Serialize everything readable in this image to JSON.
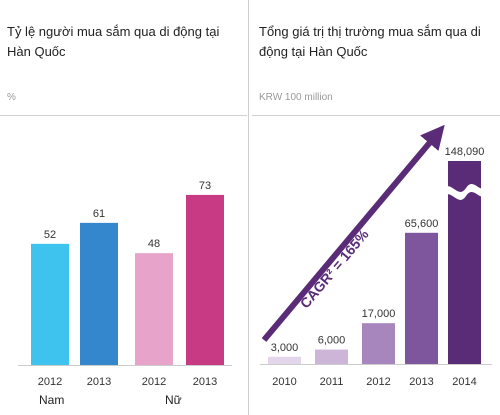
{
  "left": {
    "title": "Tỷ lệ người mua sắm qua di động tại Hàn Quốc",
    "unit": "%",
    "groups": [
      "Nam",
      "Nữ"
    ]
  },
  "right": {
    "title": "Tổng giá trị thị trường mua sắm qua di động tại Hàn Quốc",
    "unit": "KRW 100 million",
    "annotation": "CAGR² = 165%"
  },
  "chart_data": [
    {
      "type": "bar",
      "title": "Tỷ lệ người mua sắm qua di động tại Hàn Quốc",
      "ylabel": "%",
      "categories": [
        "2012",
        "2013",
        "2012",
        "2013"
      ],
      "groups": [
        "Nam",
        "Nam",
        "Nữ",
        "Nữ"
      ],
      "values": [
        52,
        61,
        48,
        73
      ],
      "value_labels": [
        "52",
        "61",
        "48",
        "73"
      ],
      "colors": [
        "#3EC3EE",
        "#3487CC",
        "#E7A3C9",
        "#C83A84"
      ],
      "ylim": [
        0,
        100
      ],
      "grid": false
    },
    {
      "type": "bar",
      "title": "Tổng giá trị thị trường mua sắm qua di động tại Hàn Quốc",
      "ylabel": "KRW 100 million",
      "categories": [
        "2010",
        "2011",
        "2012",
        "2013",
        "2014"
      ],
      "values": [
        3000,
        6000,
        17000,
        65600,
        148090
      ],
      "value_labels": [
        "3,000",
        "6,000",
        "17,000",
        "65,600",
        "148,090"
      ],
      "colors": [
        "#E3D5EA",
        "#CDB5D8",
        "#A785BD",
        "#7E569E",
        "#5A2B77"
      ],
      "axis_break": true,
      "annotation": "CAGR² = 165%",
      "grid": false
    }
  ]
}
